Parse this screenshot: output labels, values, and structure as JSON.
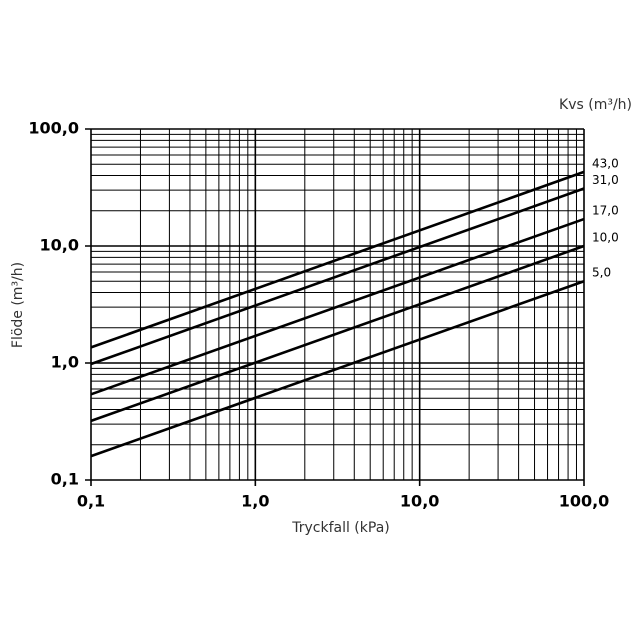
{
  "chart_data": {
    "type": "line",
    "x_label": "Tryckfall (kPa)",
    "y_label": "Flöde (m³/h)",
    "legend_title": "Kvs (m³/h)",
    "x": [
      0.1,
      100
    ],
    "series": [
      {
        "name": "43,0",
        "color": "#000000",
        "values": [
          1.36,
          43
        ]
      },
      {
        "name": "31,0",
        "color": "#000000",
        "values": [
          0.98,
          31
        ]
      },
      {
        "name": "17,0",
        "color": "#000000",
        "values": [
          0.54,
          17
        ]
      },
      {
        "name": "10,0",
        "color": "#000000",
        "values": [
          0.32,
          10
        ]
      },
      {
        "name": "5,0",
        "color": "#000000",
        "values": [
          0.16,
          5
        ]
      }
    ],
    "xlim": [
      0.1,
      100
    ],
    "ylim": [
      0.1,
      100
    ],
    "xticks": [
      {
        "value": 0.1,
        "label": "0,1"
      },
      {
        "value": 1,
        "label": "1,0"
      },
      {
        "value": 10,
        "label": "10,0"
      },
      {
        "value": 100,
        "label": "100,0"
      }
    ],
    "yticks": [
      {
        "value": 0.1,
        "label": "0,1"
      },
      {
        "value": 1,
        "label": "1,0"
      },
      {
        "value": 10,
        "label": "10,0"
      },
      {
        "value": 100,
        "label": "100,0"
      }
    ],
    "log_scale": true,
    "grid": true,
    "minor_grid": true
  }
}
